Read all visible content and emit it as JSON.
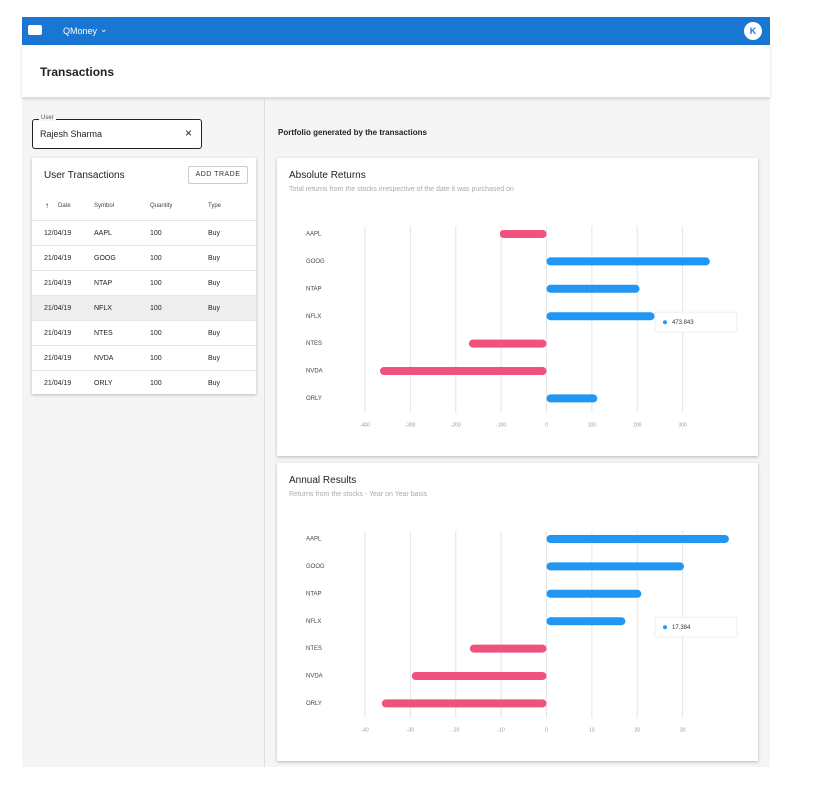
{
  "header": {
    "app_name": "QMoney",
    "avatar": "K",
    "page_title": "Transactions"
  },
  "user_field": {
    "label": "User",
    "value": "Rajesh Sharma"
  },
  "transactions": {
    "title": "User Transactions",
    "button": "ADD TRADE",
    "columns": [
      "Date",
      "Symbol",
      "Quantity",
      "Type"
    ],
    "rows": [
      [
        "12/04/19",
        "AAPL",
        "100",
        "Buy"
      ],
      [
        "21/04/19",
        "GOOG",
        "100",
        "Buy"
      ],
      [
        "21/04/19",
        "NTAP",
        "100",
        "Buy"
      ],
      [
        "21/04/19",
        "NFLX",
        "100",
        "Buy"
      ],
      [
        "21/04/19",
        "NTES",
        "100",
        "Buy"
      ],
      [
        "21/04/19",
        "NVDA",
        "100",
        "Buy"
      ],
      [
        "21/04/19",
        "ORLY",
        "100",
        "Buy"
      ]
    ]
  },
  "portfolio_heading": "Portfolio generated by the transactions",
  "chart_data": [
    {
      "type": "bar",
      "title": "Absolute Returns",
      "subtitle": "Total returns from the stocks irrespective of the date it was purchased on",
      "categories": [
        "AAPL",
        "GOOG",
        "NTAP",
        "NFLX",
        "NTES",
        "NVDA",
        "ORLY"
      ],
      "values": [
        -103,
        360,
        205,
        238,
        -171,
        -367,
        112
      ],
      "xlim": [
        -400,
        400
      ],
      "xticks": [
        -400,
        -300,
        -200,
        -100,
        0,
        100,
        200,
        300
      ],
      "positive_color": "#2196f3",
      "negative_color": "#f0527e",
      "grid": true,
      "tooltip": 473.843
    },
    {
      "type": "bar",
      "title": "Annual Results",
      "subtitle": "Returns from the stocks - Year on Year basis",
      "categories": [
        "AAPL",
        "GOOG",
        "NTAP",
        "NFLX",
        "NTES",
        "NVDA",
        "ORLY"
      ],
      "values": [
        40.2,
        30.3,
        20.9,
        17.384,
        -16.9,
        -29.7,
        -36.3
      ],
      "xlim": [
        -40,
        40
      ],
      "xticks": [
        -40,
        -30,
        -20,
        -10,
        0,
        10,
        20,
        30
      ],
      "positive_color": "#2196f3",
      "negative_color": "#f0527e",
      "grid": true,
      "tooltip": 17.384
    }
  ]
}
